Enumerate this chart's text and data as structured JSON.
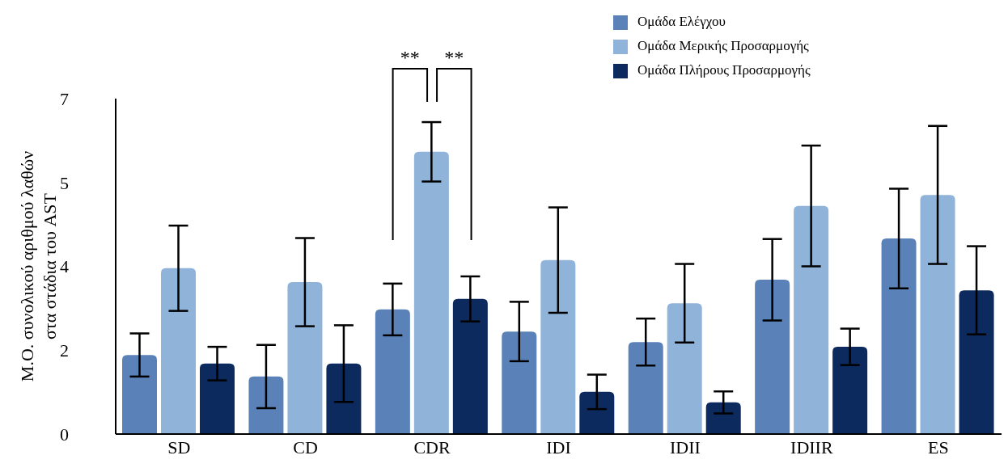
{
  "chart_data": {
    "type": "bar",
    "ylabel": "Μ.Ο. συνολικού αριθμού λαθών\nστα στάδια του AST",
    "categories": [
      "SD",
      "CD",
      "CDR",
      "IDI",
      "IDII",
      "IDIIR",
      "ES"
    ],
    "series": [
      {
        "name": "Ομάδα Ελέγχου",
        "color": "#5b82b8",
        "values": [
          1.65,
          1.2,
          2.6,
          2.14,
          1.92,
          3.22,
          4.08
        ],
        "errors": [
          0.45,
          0.66,
          0.54,
          0.62,
          0.49,
          0.85,
          1.04
        ]
      },
      {
        "name": "Ομάδα Μερικής Προσαρμογής",
        "color": "#8fb3d9",
        "values": [
          3.46,
          3.17,
          5.89,
          3.63,
          2.73,
          4.76,
          4.99
        ],
        "errors": [
          0.89,
          0.92,
          0.62,
          1.1,
          0.82,
          1.26,
          1.44
        ]
      },
      {
        "name": "Ομάδα Πλήρους Προσαρμογής",
        "color": "#0d2a5e",
        "values": [
          1.47,
          1.47,
          2.82,
          0.88,
          0.66,
          1.82,
          3.0
        ],
        "errors": [
          0.35,
          0.8,
          0.47,
          0.36,
          0.23,
          0.38,
          0.92
        ]
      }
    ],
    "ylim": [
      0,
      7
    ],
    "yticks": [
      {
        "value": 0,
        "label": "0"
      },
      {
        "value": 1.75,
        "label": "2"
      },
      {
        "value": 3.5,
        "label": "4"
      },
      {
        "value": 5.25,
        "label": "5"
      },
      {
        "value": 7,
        "label": "7"
      }
    ],
    "annotations": [
      "**",
      "**"
    ],
    "legend": "top right",
    "grid": false
  }
}
